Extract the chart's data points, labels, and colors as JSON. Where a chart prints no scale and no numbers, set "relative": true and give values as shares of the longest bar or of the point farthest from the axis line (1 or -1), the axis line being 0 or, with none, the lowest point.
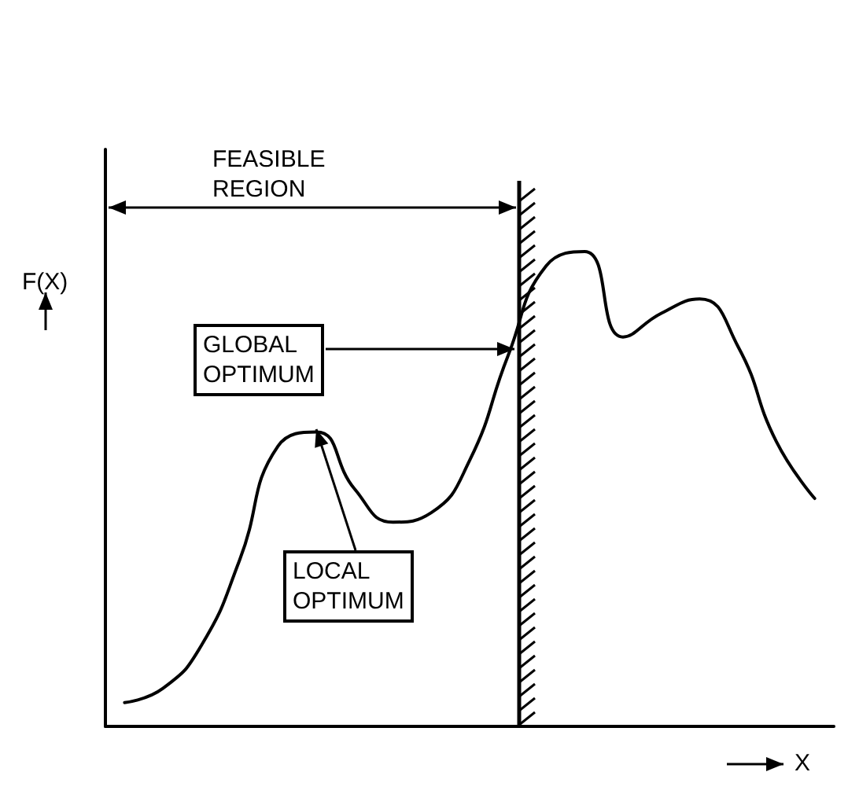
{
  "chart_data": {
    "type": "line",
    "relative": true,
    "xlabel": "X",
    "ylabel": "F(X)",
    "color": "#000000",
    "marker": "none",
    "line_style": "solid",
    "categories": [
      null,
      null,
      null,
      null,
      null,
      null,
      null,
      null,
      null,
      null,
      null,
      null,
      null,
      null,
      null,
      null,
      null,
      null,
      null
    ],
    "values": [
      0.05,
      0.08,
      0.17,
      0.35,
      0.59,
      0.62,
      0.5,
      0.43,
      0.45,
      0.56,
      0.78,
      0.97,
      1,
      0.82,
      0.87,
      0.9,
      0.8,
      0.6,
      0.48
    ],
    "annotations": [
      "FEASIBLE\nREGION",
      "GLOBAL\nOPTIMUM",
      "LOCAL\nOPTIMUM"
    ]
  }
}
